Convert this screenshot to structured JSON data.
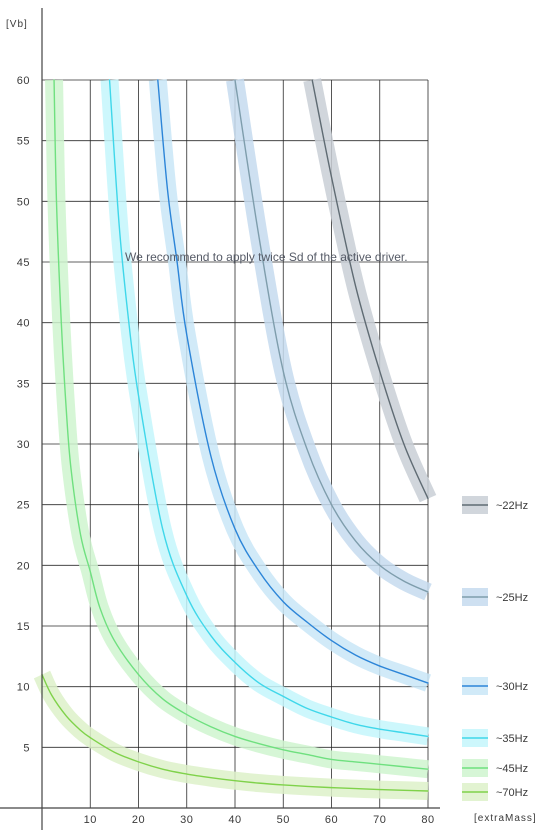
{
  "chart_data": {
    "type": "line",
    "title": "",
    "ylabel": "[Vb]",
    "xlabel": "[extraMass]",
    "xlim": [
      0,
      80
    ],
    "ylim": [
      0,
      60
    ],
    "x_ticks": [
      10,
      20,
      30,
      40,
      50,
      60,
      70,
      80
    ],
    "y_ticks": [
      5,
      10,
      15,
      20,
      25,
      30,
      35,
      40,
      45,
      50,
      55,
      60
    ],
    "grid": true,
    "legend_position": "right",
    "annotation": "We recommend to apply twice Sd of the active driver.",
    "series": [
      {
        "name": "~22Hz",
        "color": "#5f6b73",
        "band": "#c9cfd6",
        "points": [
          [
            56,
            60
          ],
          [
            60,
            52
          ],
          [
            65,
            43
          ],
          [
            70,
            36
          ],
          [
            75,
            30
          ],
          [
            80,
            25.5
          ]
        ]
      },
      {
        "name": "~25Hz",
        "color": "#7e9dac",
        "band": "#c5daee",
        "points": [
          [
            40,
            60
          ],
          [
            45,
            47
          ],
          [
            50,
            36
          ],
          [
            55,
            29.5
          ],
          [
            60,
            25
          ],
          [
            65,
            22
          ],
          [
            70,
            20
          ],
          [
            75,
            18.7
          ],
          [
            80,
            17.8
          ]
        ]
      },
      {
        "name": "~30Hz",
        "color": "#2c85d8",
        "band": "#c9e6f7",
        "points": [
          [
            24,
            60
          ],
          [
            26,
            51
          ],
          [
            28,
            45
          ],
          [
            30,
            39
          ],
          [
            35,
            29
          ],
          [
            40,
            23
          ],
          [
            45,
            19.5
          ],
          [
            50,
            17
          ],
          [
            55,
            15.3
          ],
          [
            60,
            13.8
          ],
          [
            65,
            12.6
          ],
          [
            70,
            11.7
          ],
          [
            75,
            11
          ],
          [
            80,
            10.3
          ]
        ]
      },
      {
        "name": "~35Hz",
        "color": "#3fd7ea",
        "band": "#c4f6fb",
        "points": [
          [
            14,
            60
          ],
          [
            16,
            48
          ],
          [
            18,
            40
          ],
          [
            20,
            34
          ],
          [
            25,
            23
          ],
          [
            30,
            17.5
          ],
          [
            35,
            14.2
          ],
          [
            40,
            12
          ],
          [
            45,
            10.3
          ],
          [
            50,
            9.2
          ],
          [
            55,
            8.2
          ],
          [
            60,
            7.5
          ],
          [
            65,
            6.9
          ],
          [
            70,
            6.5
          ],
          [
            75,
            6.2
          ],
          [
            80,
            5.9
          ]
        ]
      },
      {
        "name": "~45Hz",
        "color": "#6fe07f",
        "band": "#cff5cf",
        "points": [
          [
            2.5,
            60
          ],
          [
            3,
            50
          ],
          [
            4,
            40
          ],
          [
            5,
            33
          ],
          [
            6,
            28
          ],
          [
            8,
            22.5
          ],
          [
            10,
            19.5
          ],
          [
            12,
            16.5
          ],
          [
            15,
            13.8
          ],
          [
            20,
            11
          ],
          [
            25,
            9
          ],
          [
            30,
            7.7
          ],
          [
            35,
            6.7
          ],
          [
            40,
            5.9
          ],
          [
            45,
            5.3
          ],
          [
            50,
            4.8
          ],
          [
            55,
            4.4
          ],
          [
            60,
            4
          ],
          [
            65,
            3.8
          ],
          [
            70,
            3.6
          ],
          [
            75,
            3.4
          ],
          [
            80,
            3.2
          ]
        ]
      },
      {
        "name": "~70Hz",
        "color": "#7fd24a",
        "band": "#ddf1c9",
        "points": [
          [
            0,
            11
          ],
          [
            2,
            9.3
          ],
          [
            5,
            7.6
          ],
          [
            8,
            6.4
          ],
          [
            10,
            5.8
          ],
          [
            15,
            4.6
          ],
          [
            20,
            3.8
          ],
          [
            25,
            3.2
          ],
          [
            30,
            2.8
          ],
          [
            35,
            2.5
          ],
          [
            40,
            2.25
          ],
          [
            45,
            2.05
          ],
          [
            50,
            1.9
          ],
          [
            55,
            1.78
          ],
          [
            60,
            1.68
          ],
          [
            65,
            1.6
          ],
          [
            70,
            1.52
          ],
          [
            75,
            1.46
          ],
          [
            80,
            1.4
          ]
        ]
      }
    ]
  }
}
